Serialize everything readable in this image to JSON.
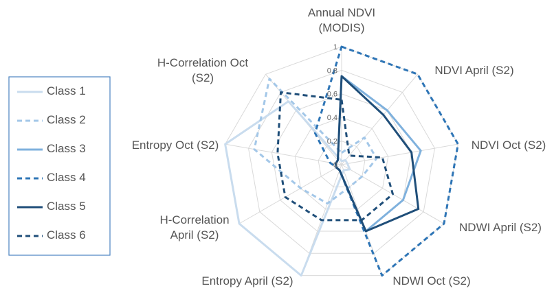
{
  "chart_data": {
    "type": "radar",
    "categories": [
      "Annual NDVI (MODIS)",
      "NDVI April (S2)",
      "NDVI Oct (S2)",
      "NDWI April (S2)",
      "NDWI Oct (S2)",
      "Entropy April (S2)",
      "H-Correlation April (S2)",
      "Entropy Oct (S2)",
      "H-Correlation Oct (S2)"
    ],
    "rlim": [
      0,
      1
    ],
    "rticks": [
      0,
      0.2,
      0.4,
      0.6,
      0.8,
      1
    ],
    "grid": true,
    "legend": "left",
    "series": [
      {
        "name": "Class 1",
        "color": "#c9dcee",
        "dashed": false,
        "values": [
          0.03,
          0.05,
          0.05,
          0.08,
          0.05,
          1,
          1,
          1,
          0.7
        ]
      },
      {
        "name": "Class 2",
        "color": "#a3c7e8",
        "dashed": true,
        "values": [
          0.1,
          0.3,
          0.3,
          0.2,
          0.2,
          0.35,
          0.4,
          0.75,
          0.95
        ]
      },
      {
        "name": "Class 3",
        "color": "#7fb1dd",
        "dashed": false,
        "values": [
          0.75,
          0.6,
          0.68,
          0.6,
          0.6,
          0.05,
          0.05,
          0.05,
          0.05
        ]
      },
      {
        "name": "Class 4",
        "color": "#2e75b6",
        "dashed": true,
        "values": [
          1,
          1,
          1,
          1,
          1,
          0.05,
          0.05,
          0.1,
          0.35
        ]
      },
      {
        "name": "Class 5",
        "color": "#1f4e79",
        "dashed": false,
        "values": [
          0.75,
          0.55,
          0.6,
          0.75,
          0.6,
          0.05,
          0.05,
          0.05,
          0.05
        ]
      },
      {
        "name": "Class 6",
        "color": "#1f4e79",
        "dashed": true,
        "values": [
          0.55,
          0.1,
          0.35,
          0.5,
          0.5,
          0.5,
          0.55,
          0.55,
          0.8
        ]
      }
    ]
  }
}
